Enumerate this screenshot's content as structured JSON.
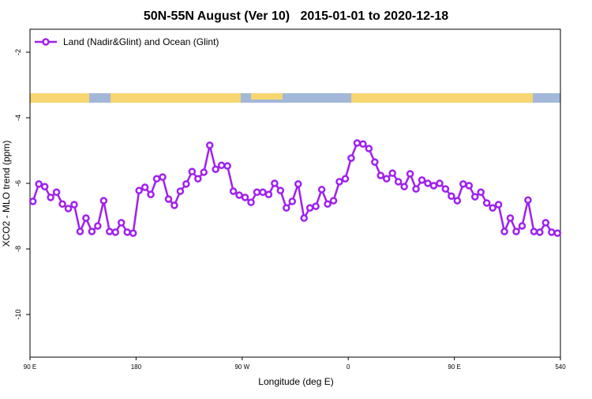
{
  "chart_data": {
    "type": "line",
    "title": "50N-55N August (Ver 10)   2015-01-01 to 2020-12-18",
    "x_label": "Longitude (deg E)",
    "y_label": "XCO2 - MLO trend (ppm)",
    "x": [
      92.5,
      97.5,
      102.5,
      107.5,
      112.5,
      117.5,
      122.5,
      127.5,
      132.5,
      137.5,
      142.5,
      147.5,
      152.5,
      157.5,
      162.5,
      167.5,
      172.5,
      177.5,
      182.5,
      187.5,
      192.5,
      197.5,
      202.5,
      207.5,
      212.5,
      217.5,
      222.5,
      227.5,
      232.5,
      237.5,
      242.5,
      247.5,
      252.5,
      257.5,
      262.5,
      267.5,
      272.5,
      277.5,
      282.5,
      287.5,
      292.5,
      297.5,
      302.5,
      307.5,
      312.5,
      317.5,
      322.5,
      327.5,
      332.5,
      337.5,
      342.5,
      347.5,
      352.5,
      357.5,
      362.5,
      367.5,
      372.5,
      377.5,
      382.5,
      387.5,
      392.5,
      397.5,
      402.5,
      407.5,
      412.5,
      417.5,
      422.5,
      427.5,
      432.5,
      437.5,
      442.5,
      447.5,
      452.5,
      457.5,
      462.5,
      467.5,
      472.5,
      477.5,
      482.5,
      487.5,
      492.5,
      497.5,
      502.5,
      507.5,
      512.5,
      517.5,
      522.5,
      527.5,
      532.5,
      537.5
    ],
    "series": [
      {
        "name": "Land (Nadir&Glint) and Ocean (Glint)",
        "color": "#a020f0",
        "values": [
          -6.55,
          -6.02,
          -6.1,
          -6.43,
          -6.27,
          -6.63,
          -6.77,
          -6.65,
          -7.47,
          -7.06,
          -7.47,
          -7.3,
          -6.53,
          -7.47,
          -7.49,
          -7.2,
          -7.49,
          -7.52,
          -6.22,
          -6.12,
          -6.34,
          -5.86,
          -5.81,
          -6.48,
          -6.67,
          -6.24,
          -6.02,
          -5.64,
          -5.86,
          -5.66,
          -4.84,
          -5.57,
          -5.45,
          -5.47,
          -6.24,
          -6.36,
          -6.43,
          -6.58,
          -6.27,
          -6.27,
          -6.34,
          -6.0,
          -6.22,
          -6.75,
          -6.55,
          -6.02,
          -7.06,
          -6.75,
          -6.7,
          -6.19,
          -6.63,
          -6.53,
          -5.95,
          -5.86,
          -5.23,
          -4.77,
          -4.8,
          -4.94,
          -5.35,
          -5.76,
          -5.86,
          -5.69,
          -5.95,
          -6.1,
          -5.71,
          -6.17,
          -5.9,
          -6.0,
          -6.07,
          -6.0,
          -6.17,
          -6.39,
          -6.53,
          -6.02,
          -6.07,
          -6.41,
          -6.27,
          -6.6,
          -6.75,
          -6.65,
          -7.47,
          -7.06,
          -7.47,
          -7.3,
          -6.51,
          -7.47,
          -7.49,
          -7.2,
          -7.49,
          -7.52
        ]
      }
    ],
    "xlim": [
      90,
      540
    ],
    "xticks": [
      {
        "value": 90,
        "label": "90 E"
      },
      180,
      {
        "value": 270,
        "label": "90 W"
      },
      {
        "value": 360,
        "label": "0"
      },
      {
        "value": 450,
        "label": "90 E"
      },
      540
    ],
    "ylim": [
      -11.3,
      -1.3
    ],
    "yticks": [
      -2,
      -4,
      -6,
      -8,
      -10
    ],
    "legend": "top-left"
  }
}
